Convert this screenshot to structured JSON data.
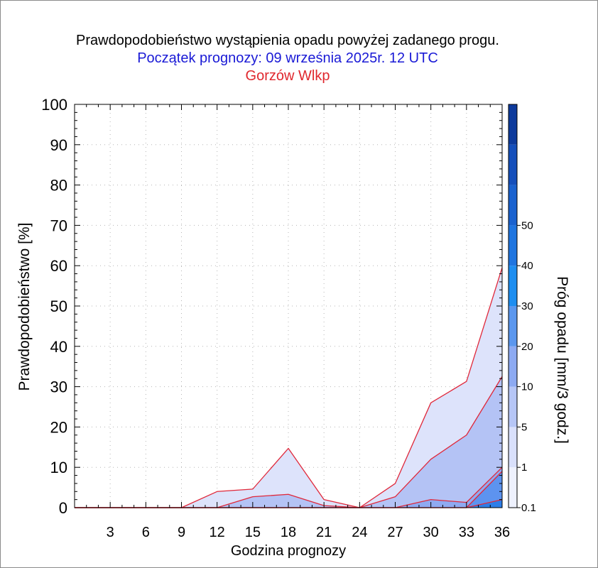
{
  "chart_data": {
    "type": "area",
    "title": "Prawdopodobieństwo wystąpienia opadu powyżej zadanego progu.",
    "subtitle": "Początek prognozy: 09 września 2025r. 12 UTC",
    "location": "Gorzów Wlkp",
    "xlabel": "Godzina prognozy",
    "ylabel": "Prawdopodobieństwo [%]",
    "colorbar_label": "Próg opadu [mm/3 godz.]",
    "xlim": [
      0,
      36
    ],
    "ylim": [
      0,
      100
    ],
    "x_ticks": [
      3,
      6,
      9,
      12,
      15,
      18,
      21,
      24,
      27,
      30,
      33,
      36
    ],
    "y_ticks": [
      0,
      10,
      20,
      30,
      40,
      50,
      60,
      70,
      80,
      90,
      100
    ],
    "grid": true,
    "x": [
      0,
      3,
      6,
      9,
      12,
      15,
      18,
      21,
      24,
      27,
      30,
      33,
      36
    ],
    "series": [
      {
        "threshold": "0.1",
        "color": "#dde3fb",
        "values": [
          0,
          0,
          0,
          0,
          4,
          4.6,
          14.7,
          2,
          0,
          6,
          26,
          31.3,
          59.5
        ]
      },
      {
        "threshold": "1",
        "color": "#b4c3f5",
        "values": [
          0,
          0,
          0,
          0,
          0,
          2.7,
          3.3,
          0.5,
          0,
          2.7,
          12,
          18,
          32.5
        ]
      },
      {
        "threshold": "5",
        "color": "#8faaf2",
        "values": [
          0,
          0,
          0,
          0,
          0,
          0,
          0,
          0,
          0,
          0,
          2,
          1.3,
          10
        ]
      },
      {
        "threshold": "10",
        "color": "#5d93ef",
        "values": [
          0,
          0,
          0,
          0,
          0,
          0,
          0,
          0,
          0,
          0,
          0,
          0,
          9
        ]
      },
      {
        "threshold": "20",
        "color": "#2d7ee8",
        "values": [
          0,
          0,
          0,
          0,
          0,
          0,
          0,
          0,
          0,
          0,
          0,
          0,
          2
        ]
      }
    ],
    "colorbar": {
      "labels": [
        "0.1",
        "1",
        "5",
        "10",
        "20",
        "30",
        "40",
        "50"
      ],
      "colors": [
        "#eef1fd",
        "#d9e0fb",
        "#b6c6f6",
        "#8daaf2",
        "#5b97ee",
        "#1e8ef0",
        "#1f75e0",
        "#1a62cf",
        "#154fbb",
        "#0d3a9c"
      ]
    }
  }
}
